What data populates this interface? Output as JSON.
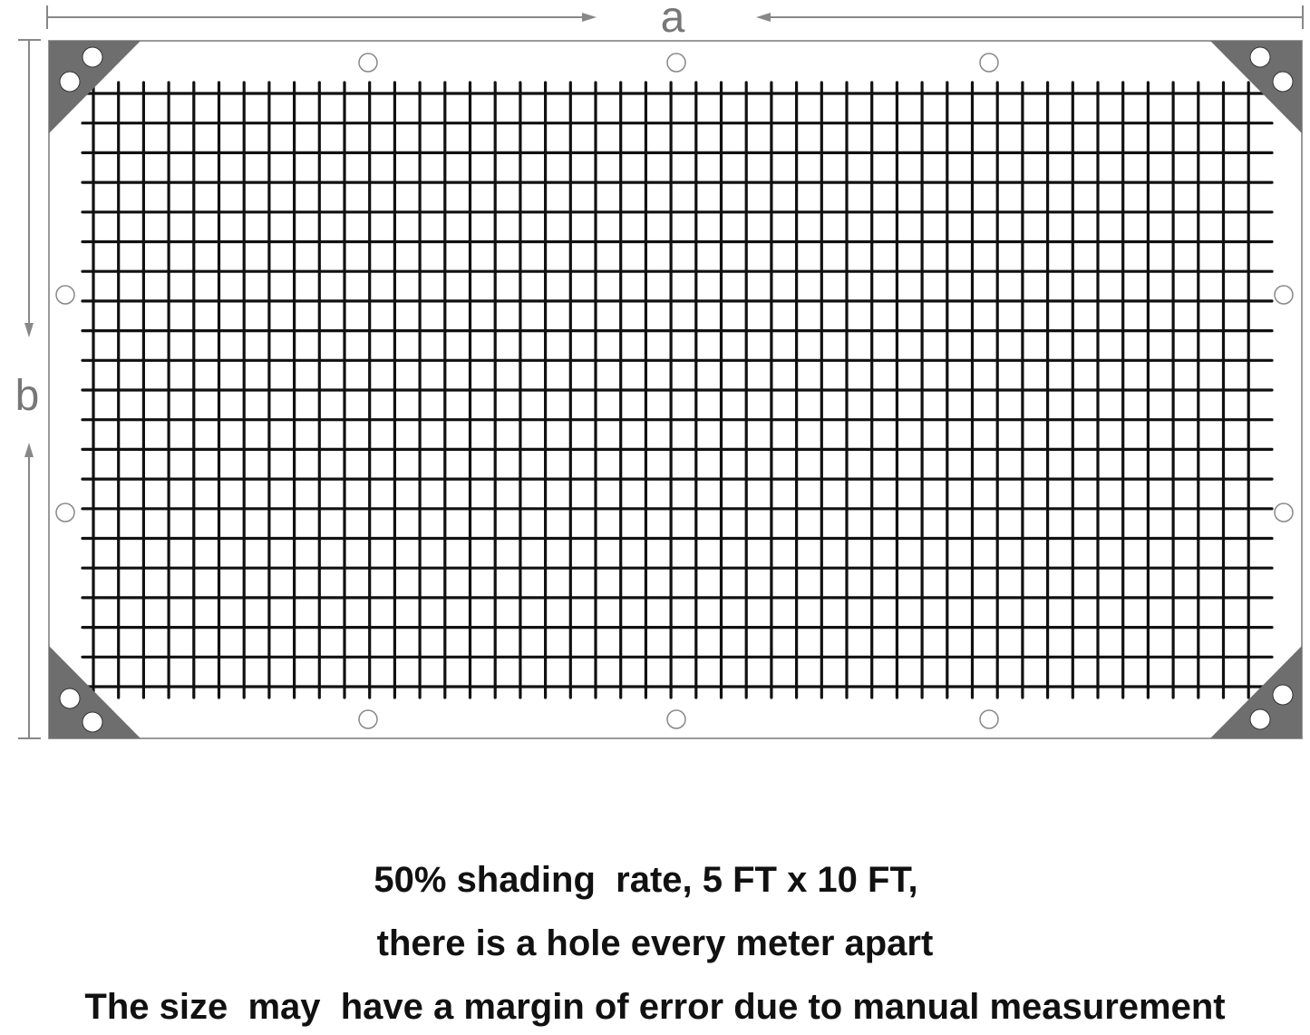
{
  "diagram": {
    "dimension_labels": {
      "width": "a",
      "height": "b"
    },
    "colors": {
      "mesh": "#111111",
      "frame": "#9a9a9a",
      "corner_patch": "#6e6e6e",
      "dimension_line": "#888888"
    }
  },
  "caption": {
    "line1": "50% shading  rate, 5 FT x 10 FT,",
    "line2": "there is a hole every meter apart",
    "line3": "The size  may  have a margin of error due to manual measurement"
  }
}
